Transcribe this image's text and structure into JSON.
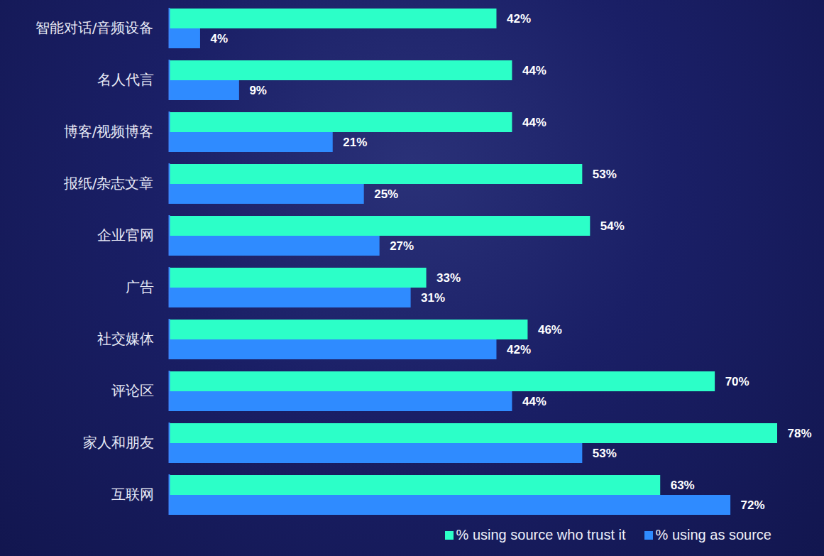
{
  "chart_data": {
    "type": "bar",
    "orientation": "horizontal",
    "categories": [
      "智能对话/音频设备",
      "名人代言",
      "博客/视频博客",
      "报纸/杂志文章",
      "企业官网",
      "广告",
      "社交媒体",
      "评论区",
      "家人和朋友",
      "互联网"
    ],
    "series": [
      {
        "name": "% using source who trust it",
        "color": "#2cffc8",
        "values": [
          42,
          44,
          44,
          53,
          54,
          33,
          46,
          70,
          78,
          63
        ],
        "value_labels": [
          "42%",
          "44%",
          "44%",
          "53%",
          "54%",
          "33%",
          "46%",
          "70%",
          "78%",
          "63%"
        ]
      },
      {
        "name": "% using as source",
        "color": "#2f8bff",
        "values": [
          4,
          9,
          21,
          25,
          27,
          31,
          42,
          44,
          53,
          72
        ],
        "value_labels": [
          "4%",
          "9%",
          "21%",
          "25%",
          "27%",
          "31%",
          "42%",
          "44%",
          "53%",
          "72%"
        ]
      }
    ],
    "xlim": [
      0,
      80
    ],
    "data_labels": true,
    "tick_labels": "y",
    "grid": false,
    "legend": "bottom"
  }
}
